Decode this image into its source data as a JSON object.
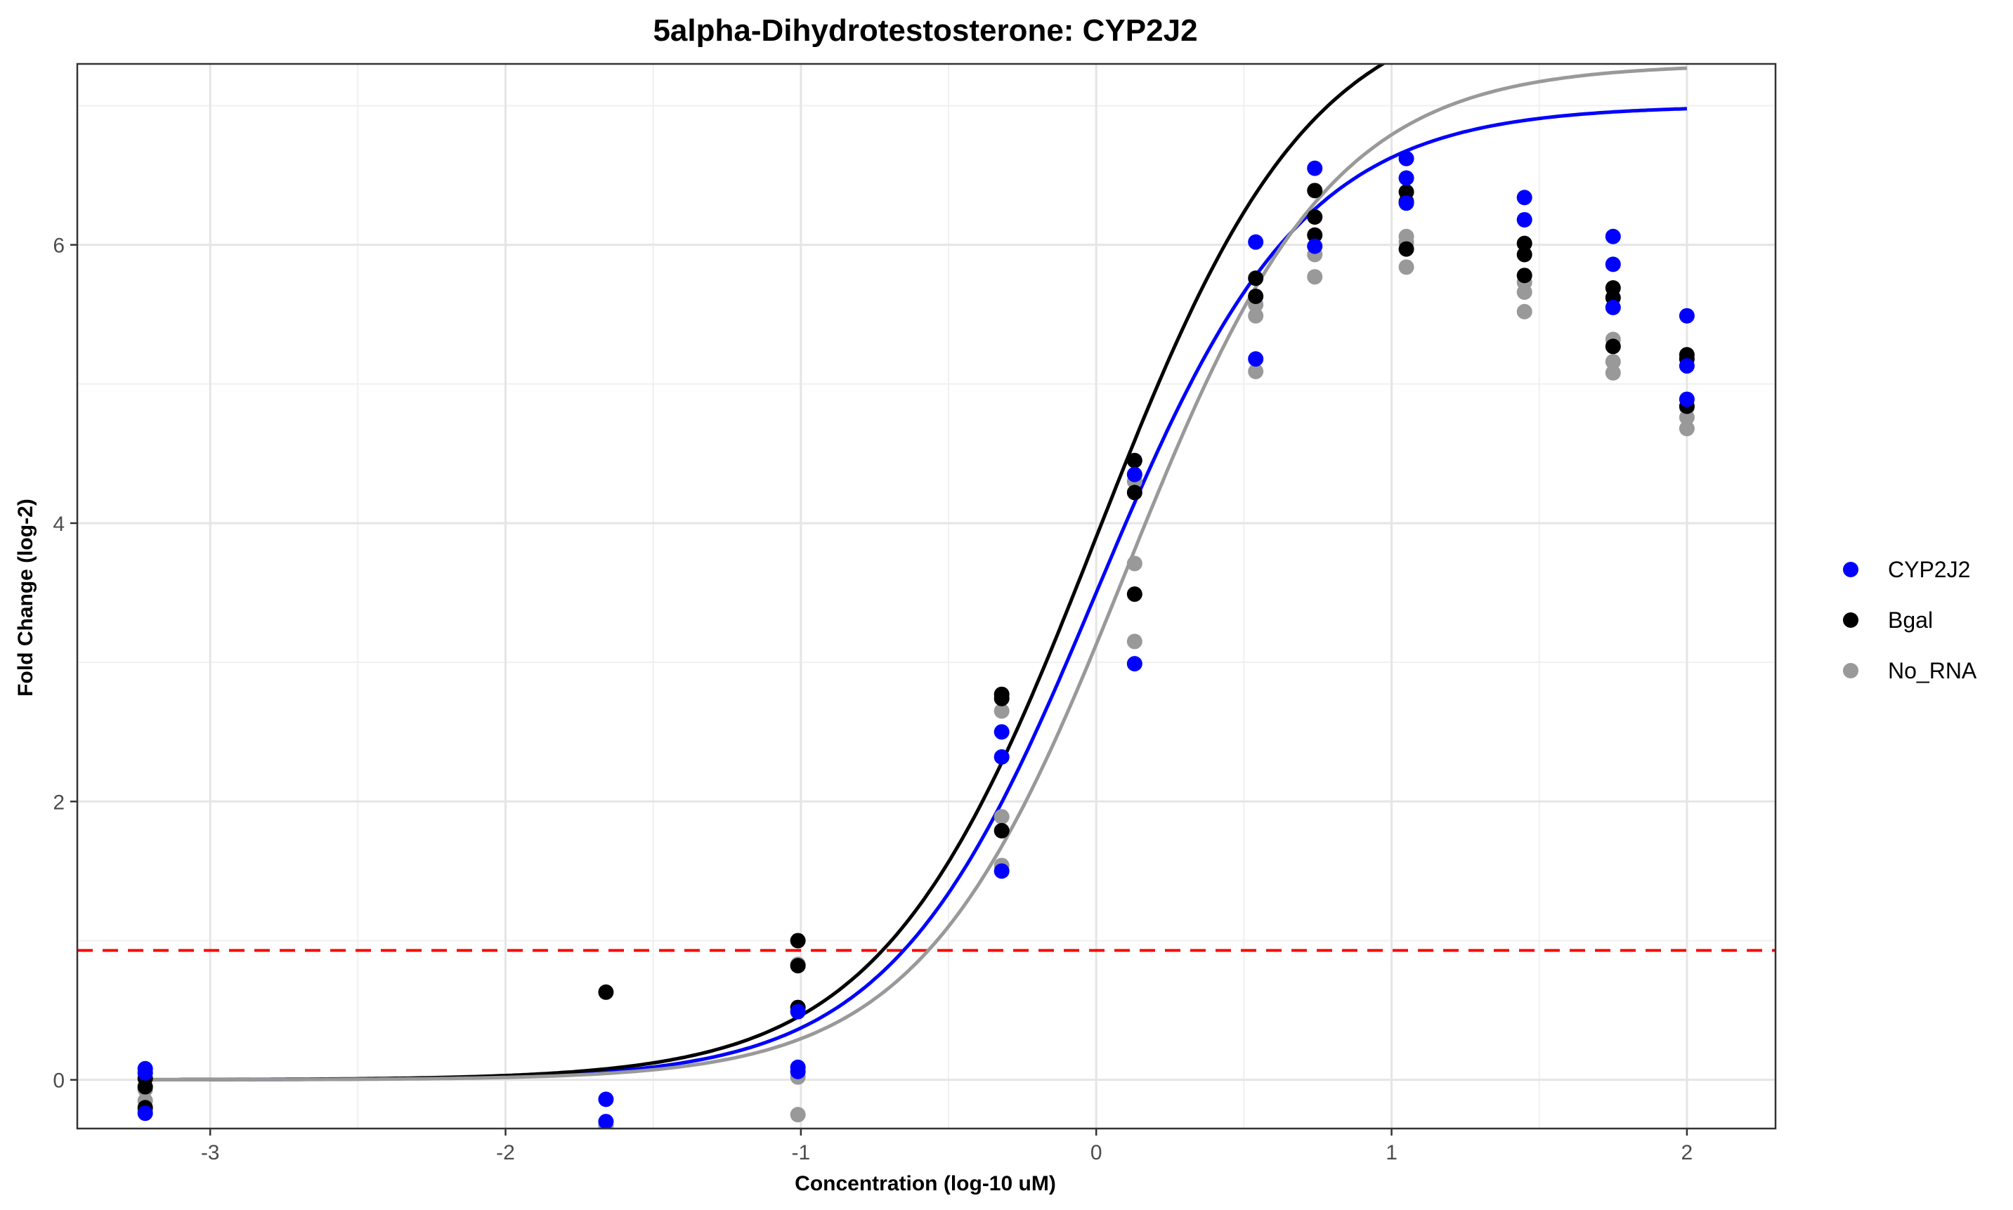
{
  "chart_data": {
    "type": "scatter",
    "title": "5alpha-Dihydrotestosterone: CYP2J2",
    "xlabel": "Concentration (log-10 uM)",
    "ylabel": "Fold Change (log-2)",
    "xlim": [
      -3.45,
      2.3
    ],
    "ylim": [
      -0.35,
      7.3
    ],
    "x_ticks": [
      -3,
      -2,
      -1,
      0,
      1,
      2
    ],
    "y_ticks": [
      0,
      2,
      4,
      6
    ],
    "grid": true,
    "legend_position": "right",
    "threshold": {
      "y": 0.93,
      "color": "#ff0000",
      "style": "dashed"
    },
    "series": [
      {
        "name": "CYP2J2",
        "color": "#0000ff",
        "points": [
          [
            -3.22,
            0.08
          ],
          [
            -3.22,
            0.05
          ],
          [
            -3.22,
            -0.24
          ],
          [
            -1.66,
            -0.14
          ],
          [
            -1.66,
            -0.3
          ],
          [
            -1.01,
            0.09
          ],
          [
            -1.01,
            0.06
          ],
          [
            -1.01,
            0.49
          ],
          [
            -0.32,
            2.5
          ],
          [
            -0.32,
            2.32
          ],
          [
            -0.32,
            1.5
          ],
          [
            0.13,
            4.35
          ],
          [
            0.13,
            2.99
          ],
          [
            0.54,
            6.02
          ],
          [
            0.54,
            5.18
          ],
          [
            0.74,
            6.55
          ],
          [
            0.74,
            5.99
          ],
          [
            1.05,
            6.62
          ],
          [
            1.05,
            6.48
          ],
          [
            1.05,
            6.3
          ],
          [
            1.45,
            6.34
          ],
          [
            1.45,
            6.18
          ],
          [
            1.75,
            6.06
          ],
          [
            1.75,
            5.86
          ],
          [
            1.75,
            5.55
          ],
          [
            2.0,
            5.49
          ],
          [
            2.0,
            5.13
          ],
          [
            2.0,
            4.89
          ]
        ],
        "curve": {
          "bottom": 0.0,
          "top": 7.0,
          "ec50_log": 0.0,
          "hill": 1.25
        }
      },
      {
        "name": "Bgal",
        "color": "#000000",
        "points": [
          [
            -3.22,
            0.01
          ],
          [
            -3.22,
            -0.05
          ],
          [
            -3.22,
            -0.2
          ],
          [
            -1.66,
            0.63
          ],
          [
            -1.01,
            1.0
          ],
          [
            -1.01,
            0.52
          ],
          [
            -1.01,
            0.82
          ],
          [
            -0.32,
            2.77
          ],
          [
            -0.32,
            2.74
          ],
          [
            -0.32,
            1.79
          ],
          [
            0.13,
            4.45
          ],
          [
            0.13,
            4.22
          ],
          [
            0.13,
            3.49
          ],
          [
            0.54,
            5.76
          ],
          [
            0.54,
            5.63
          ],
          [
            0.74,
            6.39
          ],
          [
            0.74,
            6.2
          ],
          [
            0.74,
            6.07
          ],
          [
            1.05,
            6.38
          ],
          [
            1.05,
            6.31
          ],
          [
            1.05,
            5.97
          ],
          [
            1.45,
            6.01
          ],
          [
            1.45,
            5.93
          ],
          [
            1.45,
            5.78
          ],
          [
            1.75,
            5.69
          ],
          [
            1.75,
            5.62
          ],
          [
            1.75,
            5.27
          ],
          [
            2.0,
            5.21
          ],
          [
            2.0,
            5.18
          ],
          [
            2.0,
            4.84
          ]
        ],
        "curve": {
          "bottom": 0.0,
          "top": 7.8,
          "ec50_log": 0.0,
          "hill": 1.2
        }
      },
      {
        "name": "No_RNA",
        "color": "#999999",
        "points": [
          [
            -3.22,
            -0.07
          ],
          [
            -3.22,
            -0.15
          ],
          [
            -3.22,
            -0.22
          ],
          [
            -1.66,
            -0.33
          ],
          [
            -1.01,
            0.83
          ],
          [
            -1.01,
            0.02
          ],
          [
            -1.01,
            -0.25
          ],
          [
            -0.32,
            2.65
          ],
          [
            -0.32,
            1.89
          ],
          [
            -0.32,
            1.54
          ],
          [
            0.13,
            4.3
          ],
          [
            0.13,
            3.71
          ],
          [
            0.13,
            3.15
          ],
          [
            0.54,
            5.57
          ],
          [
            0.54,
            5.49
          ],
          [
            0.54,
            5.09
          ],
          [
            0.74,
            5.93
          ],
          [
            0.74,
            5.77
          ],
          [
            1.05,
            6.06
          ],
          [
            1.05,
            6.02
          ],
          [
            1.05,
            5.84
          ],
          [
            1.45,
            5.73
          ],
          [
            1.45,
            5.66
          ],
          [
            1.45,
            5.52
          ],
          [
            1.75,
            5.32
          ],
          [
            1.75,
            5.16
          ],
          [
            1.75,
            5.08
          ],
          [
            2.0,
            4.83
          ],
          [
            2.0,
            4.76
          ],
          [
            2.0,
            4.68
          ]
        ],
        "curve": {
          "bottom": 0.0,
          "top": 7.3,
          "ec50_log": 0.1,
          "hill": 1.25
        }
      }
    ]
  }
}
